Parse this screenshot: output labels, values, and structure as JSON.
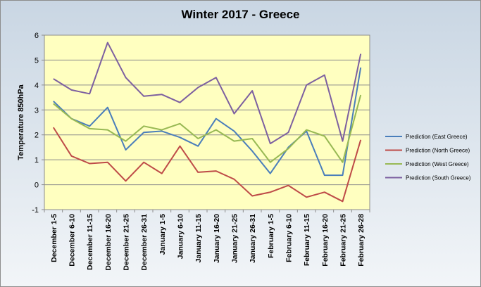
{
  "chart_data": {
    "type": "line",
    "title": "Winter 2017 - Greece",
    "xlabel": "",
    "ylabel": "Temperature 850hPa",
    "ylim": [
      -1,
      6
    ],
    "yticks": [
      "-1",
      "0",
      "1",
      "2",
      "3",
      "4",
      "5",
      "6"
    ],
    "grid": true,
    "legend_position": "right",
    "plot_background": "#ffffc0",
    "categories": [
      "December 1-5",
      "December 6-10",
      "December 11-15",
      "December 16-20",
      "December 21-25",
      "December 26-31",
      "January 1-5",
      "January 6-10",
      "January 11-15",
      "January 16-20",
      "January 21-25",
      "January 26-31",
      "February 1-5",
      "February 6-10",
      "February 11-15",
      "February 16-20",
      "February 21-25",
      "February 26-28"
    ],
    "series": [
      {
        "name": "Prediction (East Greece)",
        "color": "#4a7ebb",
        "values": [
          3.35,
          2.65,
          2.35,
          3.1,
          1.4,
          2.1,
          2.15,
          1.9,
          1.55,
          2.65,
          2.15,
          1.35,
          0.45,
          1.5,
          2.15,
          0.38,
          0.38,
          4.7
        ]
      },
      {
        "name": "Prediction (North Greece)",
        "color": "#be4b48",
        "values": [
          2.3,
          1.15,
          0.85,
          0.9,
          0.15,
          0.9,
          0.45,
          1.55,
          0.5,
          0.55,
          0.22,
          -0.45,
          -0.3,
          -0.03,
          -0.5,
          -0.3,
          -0.67,
          1.8
        ]
      },
      {
        "name": "Prediction (West Greece)",
        "color": "#98b954",
        "values": [
          3.25,
          2.65,
          2.25,
          2.2,
          1.75,
          2.35,
          2.2,
          2.45,
          1.85,
          2.2,
          1.75,
          1.85,
          0.9,
          1.45,
          2.2,
          1.95,
          0.9,
          3.6
        ]
      },
      {
        "name": "Prediction (South Greece)",
        "color": "#7d60a0",
        "values": [
          4.25,
          3.8,
          3.65,
          5.7,
          4.3,
          3.55,
          3.62,
          3.3,
          3.9,
          4.3,
          2.85,
          3.77,
          1.65,
          2.1,
          4.0,
          4.4,
          1.75,
          5.25
        ]
      }
    ]
  }
}
